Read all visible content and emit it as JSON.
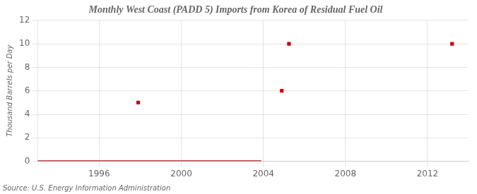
{
  "chart_data": {
    "type": "line",
    "title": "Monthly West Coast (PADD 5) Imports from Korea of Residual Fuel Oil",
    "ylabel": "Thousand Barrels per Day",
    "annotation": "Source: U.S. Energy Information Administration",
    "xlim": [
      1993.0,
      2014.0
    ],
    "xticks": [
      1996,
      2000,
      2004,
      2008,
      2012
    ],
    "ylim": [
      0,
      12
    ],
    "yticks": [
      0,
      2,
      4,
      6,
      8,
      10,
      12
    ],
    "grid": true,
    "series": [
      {
        "type": "line",
        "color": "#b22222",
        "x": [
          1993.0,
          2003.9
        ],
        "values": [
          0,
          0
        ]
      },
      {
        "type": "scatter",
        "color": "#cc0000",
        "marker": "square",
        "x": [
          1997.9,
          2004.9,
          2005.25,
          2013.2
        ],
        "values": [
          5,
          6,
          10,
          10
        ]
      }
    ]
  }
}
